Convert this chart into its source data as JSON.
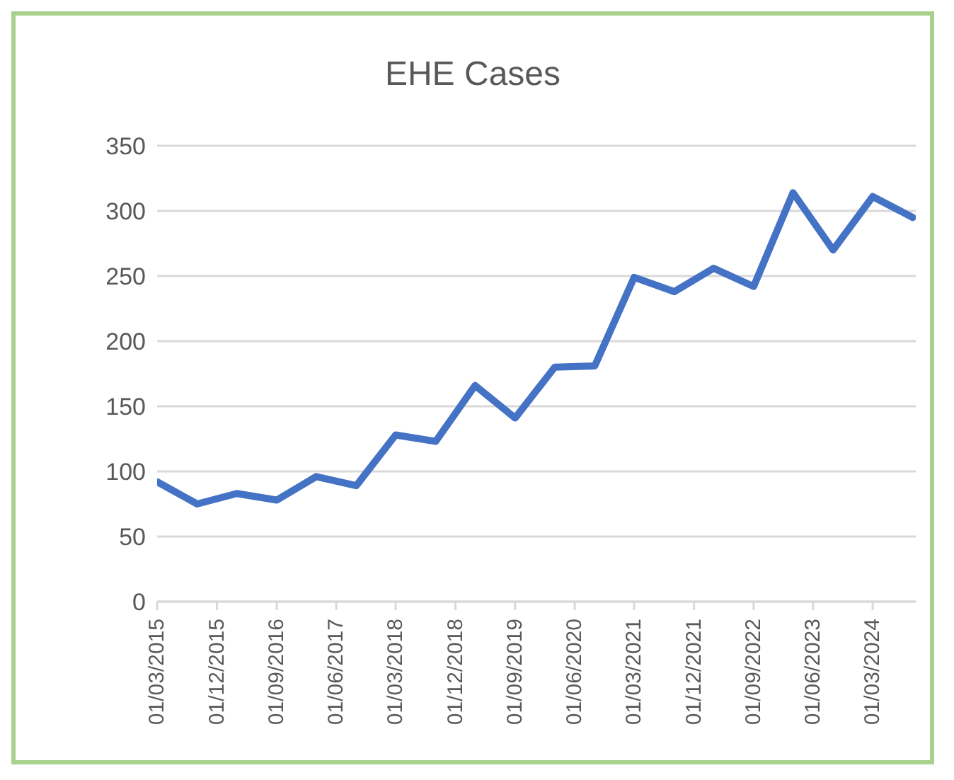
{
  "chart_data": {
    "type": "line",
    "title": "EHE Cases",
    "x": [
      "2015-03-01",
      "2015-09-01",
      "2016-03-01",
      "2016-09-01",
      "2017-03-01",
      "2017-09-01",
      "2018-03-01",
      "2018-09-01",
      "2019-03-01",
      "2019-09-01",
      "2020-03-01",
      "2020-09-01",
      "2021-03-01",
      "2021-09-01",
      "2022-03-01",
      "2022-09-01",
      "2023-03-01",
      "2023-09-01",
      "2024-03-01",
      "2024-09-01"
    ],
    "series": [
      {
        "color": "#4472c4",
        "values": [
          92,
          75,
          83,
          78,
          96,
          89,
          128,
          123,
          166,
          141,
          180,
          181,
          249,
          238,
          256,
          242,
          314,
          270,
          311,
          295
        ]
      }
    ],
    "xlim": [
      "2015-03-01",
      "2024-09-15"
    ],
    "xticks": [
      {
        "value": "2015-03-01",
        "label": "01/03/2015"
      },
      {
        "value": "2015-12-01",
        "label": "01/12/2015"
      },
      {
        "value": "2016-09-01",
        "label": "01/09/2016"
      },
      {
        "value": "2017-06-01",
        "label": "01/06/2017"
      },
      {
        "value": "2018-03-01",
        "label": "01/03/2018"
      },
      {
        "value": "2018-12-01",
        "label": "01/12/2018"
      },
      {
        "value": "2019-09-01",
        "label": "01/09/2019"
      },
      {
        "value": "2020-06-01",
        "label": "01/06/2020"
      },
      {
        "value": "2021-03-01",
        "label": "01/03/2021"
      },
      {
        "value": "2021-12-01",
        "label": "01/12/2021"
      },
      {
        "value": "2022-09-01",
        "label": "01/09/2022"
      },
      {
        "value": "2023-06-01",
        "label": "01/06/2023"
      },
      {
        "value": "2024-03-01",
        "label": "01/03/2024"
      }
    ],
    "ylim": [
      0,
      350
    ],
    "yticks": [
      0,
      50,
      100,
      150,
      200,
      250,
      300,
      350
    ],
    "grid": "y",
    "marker": "none",
    "line_style": "solid"
  }
}
